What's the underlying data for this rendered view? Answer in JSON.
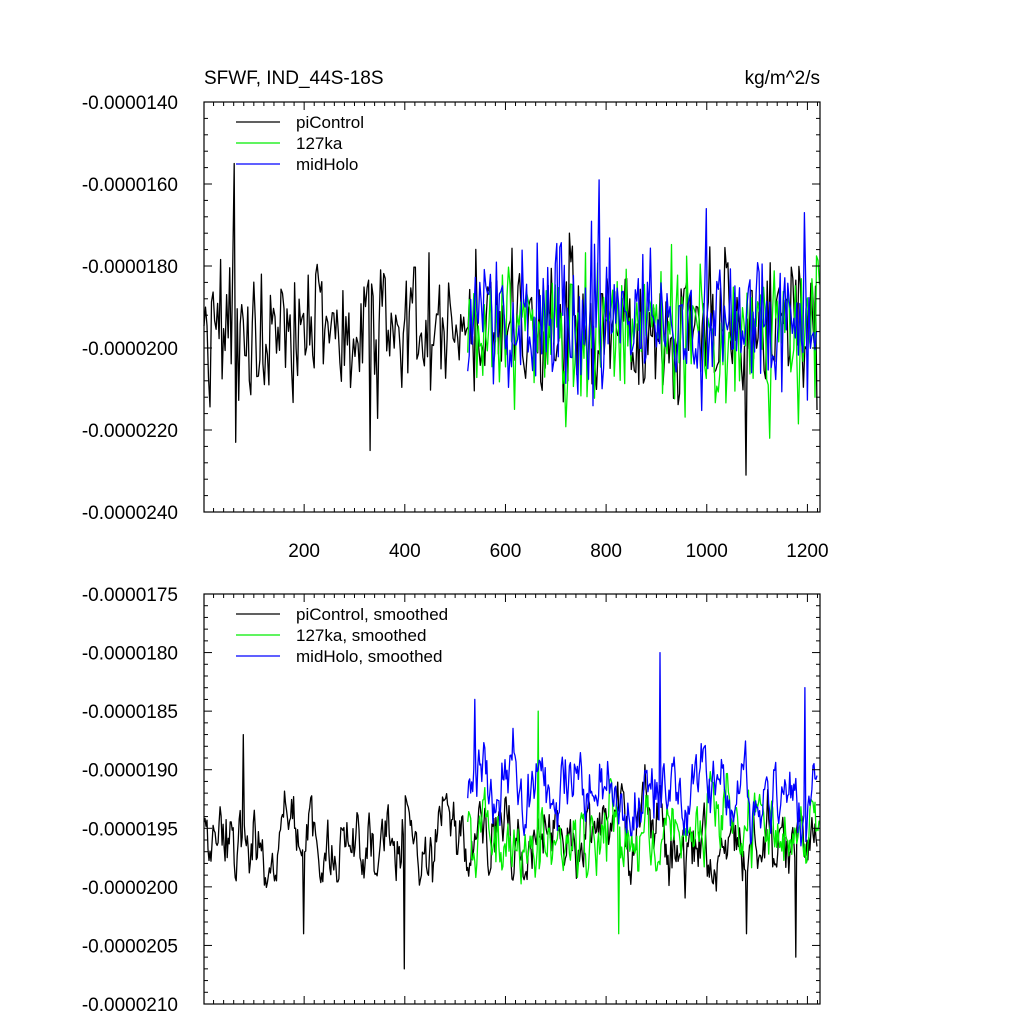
{
  "chart_data": [
    {
      "type": "line",
      "title_left": "SFWF, IND_44S-18S",
      "title_right": "kg/m^2/s",
      "xlim": [
        1,
        1225
      ],
      "ylim": [
        -2.4e-05,
        -1.4e-05
      ],
      "x_ticks": [
        200,
        400,
        600,
        800,
        1000,
        1200
      ],
      "x_tick_labels": [
        "200",
        "400",
        "600",
        "800",
        "1000",
        "1200"
      ],
      "y_ticks": [
        -1.4e-05,
        -1.6e-05,
        -1.8e-05,
        -2e-05,
        -2.2e-05,
        -2.4e-05
      ],
      "y_tick_labels": [
        "-0.0000140",
        "-0.0000160",
        "-0.0000180",
        "-0.0000200",
        "-0.0000220",
        "-0.0000240"
      ],
      "legend_position": "top-left",
      "series": [
        {
          "name": "piControl",
          "color": "#000000",
          "x_range": [
            1,
            1220
          ],
          "mean": -1.95e-05,
          "spread": 1.1e-06,
          "extremes": [
            [
              62,
              -1.55e-05
            ],
            [
              65,
              -2.23e-05
            ],
            [
              330,
              -2.25e-05
            ],
            [
              1078,
              -2.31e-05
            ]
          ]
        },
        {
          "name": "127ka",
          "color": "#00ee00",
          "x_range": [
            525,
            1225
          ],
          "mean": -1.95e-05,
          "spread": 1.1e-06,
          "extremes": [
            [
              1125,
              -2.22e-05
            ],
            [
              1215,
              -2.12e-05
            ]
          ]
        },
        {
          "name": "midHolo",
          "color": "#0000ff",
          "x_range": [
            525,
            1220
          ],
          "mean": -1.93e-05,
          "spread": 1.1e-06,
          "extremes": [
            [
              785,
              -1.59e-05
            ],
            [
              1000,
              -1.66e-05
            ],
            [
              1195,
              -1.67e-05
            ]
          ]
        }
      ]
    },
    {
      "type": "line",
      "xlim": [
        1,
        1225
      ],
      "ylim": [
        -2.1e-05,
        -1.75e-05
      ],
      "x_ticks": [
        200,
        400,
        600,
        800,
        1000,
        1200
      ],
      "y_ticks": [
        -1.75e-05,
        -1.8e-05,
        -1.85e-05,
        -1.9e-05,
        -1.95e-05,
        -2e-05,
        -2.05e-05,
        -2.1e-05
      ],
      "y_tick_labels": [
        "-0.0000175",
        "-0.0000180",
        "-0.0000185",
        "-0.0000190",
        "-0.0000195",
        "-0.0000200",
        "-0.0000205",
        "-0.0000210"
      ],
      "legend_position": "top-left",
      "series": [
        {
          "name": "piControl, smoothed",
          "color": "#000000",
          "x_range": [
            1,
            1220
          ],
          "mean": -1.96e-05,
          "spread": 3e-07,
          "extremes": [
            [
              80,
              -1.87e-05
            ],
            [
              200,
              -2.04e-05
            ],
            [
              400,
              -2.07e-05
            ],
            [
              1080,
              -2.04e-05
            ],
            [
              1178,
              -2.06e-05
            ]
          ]
        },
        {
          "name": "127ka, smoothed",
          "color": "#00ee00",
          "x_range": [
            525,
            1225
          ],
          "mean": -1.95e-05,
          "spread": 3e-07,
          "extremes": [
            [
              665,
              -1.85e-05
            ],
            [
              825,
              -2.04e-05
            ]
          ]
        },
        {
          "name": "midHolo, smoothed",
          "color": "#0000ff",
          "x_range": [
            525,
            1220
          ],
          "mean": -1.92e-05,
          "spread": 3e-07,
          "extremes": [
            [
              540,
              -1.84e-05
            ],
            [
              908,
              -1.8e-05
            ],
            [
              1195,
              -1.83e-05
            ]
          ]
        }
      ]
    }
  ]
}
